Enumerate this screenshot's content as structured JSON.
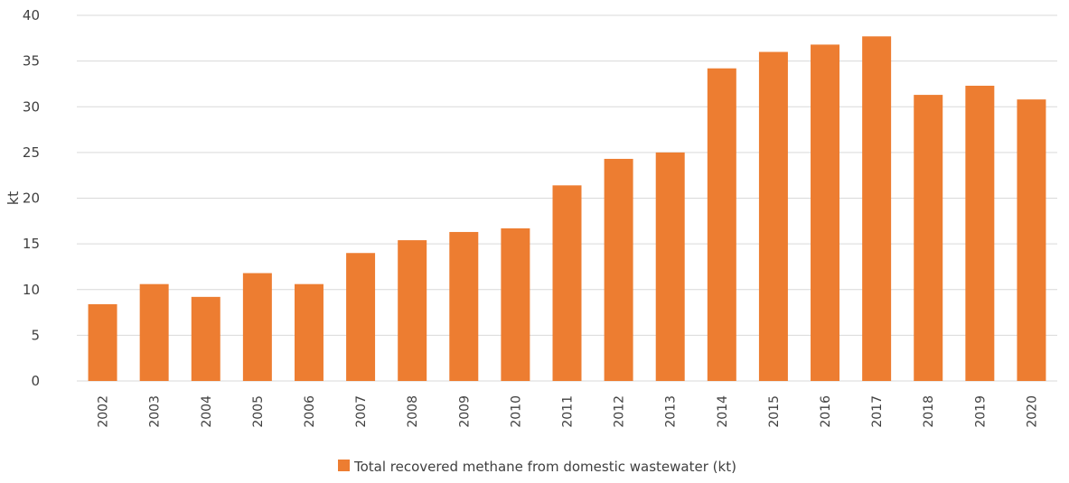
{
  "chart_data": {
    "type": "bar",
    "categories": [
      "2002",
      "2003",
      "2004",
      "2005",
      "2006",
      "2007",
      "2008",
      "2009",
      "2010",
      "2011",
      "2012",
      "2013",
      "2014",
      "2015",
      "2016",
      "2017",
      "2018",
      "2019",
      "2020"
    ],
    "series": [
      {
        "name": "Total recovered methane from domestic wastewater (kt)",
        "values": [
          8.4,
          10.6,
          9.2,
          11.8,
          10.6,
          14.0,
          15.4,
          16.3,
          16.7,
          21.4,
          24.3,
          25.0,
          34.2,
          36.0,
          36.8,
          37.7,
          31.3,
          32.3,
          30.8
        ]
      }
    ],
    "ylabel": "kt",
    "xlabel": "",
    "ylim": [
      0,
      40
    ],
    "yticks": [
      0,
      5,
      10,
      15,
      20,
      25,
      30,
      35,
      40
    ],
    "grid": true,
    "legend_position": "bottom-center",
    "bar_color": "#ED7D31",
    "grid_color": "#D9D9D9"
  }
}
